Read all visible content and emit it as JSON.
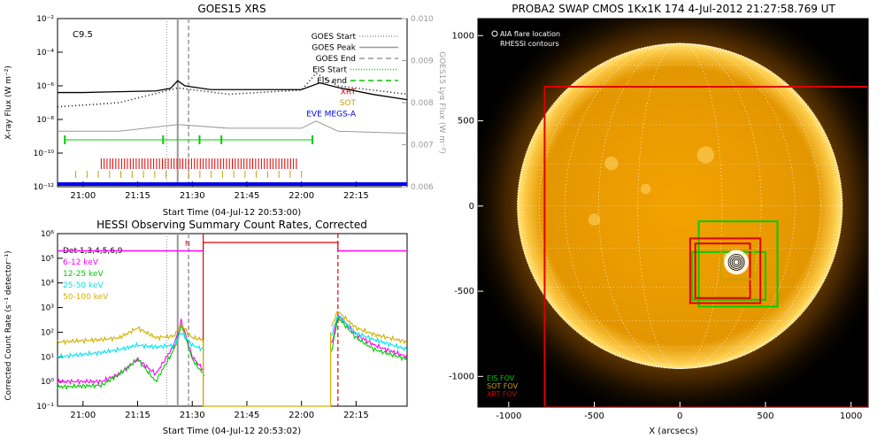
{
  "colors": {
    "goes": "#000000",
    "eis": "#00cc00",
    "xrt": "#e00000",
    "sot": "#c8a000",
    "eve": "#0000ee",
    "det": "#000000",
    "c6_12": "#ff00ff",
    "c12_25": "#00cc00",
    "c25_50": "#00e5ee",
    "c50_100": "#d4b000",
    "sun": "#f0a800",
    "grid": "#ffffff"
  },
  "goes_panel": {
    "title": "GOES15 XRS",
    "ylabel": "X-ray Flux (W m⁻²)",
    "y2label": "GOES15 Lyα Flux (W m⁻²)",
    "xlabel": "Start Time (04-Jul-12 20:53:00)",
    "flare_class": "C9.5",
    "legend": [
      {
        "label": "GOES Start",
        "style": "dotted",
        "color": "#999999"
      },
      {
        "label": "GOES Peak",
        "style": "solid",
        "color": "#999999"
      },
      {
        "label": "GOES End",
        "style": "dashed",
        "color": "#999999"
      },
      {
        "label": "EIS Start",
        "style": "dotted",
        "color": "#00cc00"
      },
      {
        "label": "EIS end",
        "style": "dashed",
        "color": "#00cc00"
      },
      {
        "label": "XRT",
        "style": "text",
        "color": "#e00000"
      },
      {
        "label": "SOT",
        "style": "text",
        "color": "#c8a000"
      },
      {
        "label": "EVE MEGS-A",
        "style": "text",
        "color": "#0000ee"
      }
    ]
  },
  "hessi_panel": {
    "title": "HESSI Observing Summary Count Rates, Corrected",
    "ylabel": "Corrected Count Rate (s⁻¹ detector⁻¹)",
    "xlabel": "Start Time (04-Jul-12 20:53:02)",
    "legend": [
      {
        "label": "Det 1,3,4,5,6,9",
        "color": "#000000"
      },
      {
        "label": "6-12 keV",
        "color": "#ff00ff"
      },
      {
        "label": "12-25 keV",
        "color": "#00cc00"
      },
      {
        "label": "25-50 keV",
        "color": "#00e5ee"
      },
      {
        "label": "50-100 keV",
        "color": "#d4b000"
      }
    ],
    "n_marker": "N"
  },
  "swap_panel": {
    "title": "PROBA2 SWAP CMOS 1Kx1K 174  4-Jul-2012 21:27:58.769 UT",
    "legend_top": [
      "AIA flare location",
      "RHESSI contours"
    ],
    "legend_bottom": [
      {
        "label": "EIS FOV",
        "color": "#00cc00"
      },
      {
        "label": "SOT FOV",
        "color": "#c8a000"
      },
      {
        "label": "XRT FOV",
        "color": "#e00000"
      }
    ],
    "xlabel": "X (arcsecs)"
  },
  "chart_data": [
    {
      "type": "line",
      "title": "GOES15 XRS",
      "xlabel": "Start Time (04-Jul-12 20:53:00)",
      "ylabel": "X-ray Flux (W m⁻²)",
      "y2label": "GOES15 Lyα Flux (W m⁻²)",
      "xlim": [
        "20:53",
        "22:29"
      ],
      "ylim": [
        1e-12,
        0.01
      ],
      "y2lim": [
        0.006,
        0.01
      ],
      "yscale": "log",
      "xticks": [
        "21:00",
        "21:15",
        "21:30",
        "21:45",
        "22:00",
        "22:15"
      ],
      "yticks": [
        "10⁻¹²",
        "10⁻¹⁰",
        "10⁻⁸",
        "10⁻⁶",
        "10⁻⁴",
        "10⁻²"
      ],
      "y2ticks": [
        "0.006",
        "0.007",
        "0.008",
        "0.009",
        "0.010"
      ],
      "events": {
        "goes_start": "21:23",
        "goes_peak": "21:26",
        "goes_end": "21:29",
        "eis_start": "21:22",
        "eis_end": "22:03"
      },
      "series": [
        {
          "name": "",
          "x": [
            "20:53",
            "21:00",
            "21:10",
            "21:20",
            "21:24",
            "21:26",
            "21:28",
            "21:35",
            "21:45",
            "22:00",
            "22:05",
            "22:10",
            "22:20",
            "22:29"
          ],
          "values": [
            4e-07,
            4e-07,
            4.5e-07,
            5e-07,
            7e-07,
            2e-06,
            1e-06,
            6e-07,
            6e-07,
            6e-07,
            1.5e-06,
            8e-07,
            3e-07,
            1.5e-07
          ]
        },
        {
          "name": "",
          "x": [
            "20:53",
            "21:10",
            "21:26",
            "21:40",
            "22:00",
            "22:04",
            "22:10",
            "22:29"
          ],
          "values": [
            0.0079,
            0.008,
            0.00835,
            0.0082,
            0.0083,
            0.0087,
            0.0084,
            0.0082
          ]
        },
        {
          "name": "",
          "x": [
            "20:53",
            "21:10",
            "21:26",
            "21:40",
            "22:00",
            "22:04",
            "22:10",
            "22:29"
          ],
          "values": [
            2e-09,
            2e-09,
            5e-09,
            3e-09,
            3e-09,
            8e-09,
            2e-09,
            1.5e-09
          ]
        }
      ]
    },
    {
      "type": "line",
      "title": "HESSI Observing Summary Count Rates, Corrected",
      "xlabel": "Start Time (04-Jul-12 20:53:02)",
      "ylabel": "Corrected Count Rate (s⁻¹ detector⁻¹)",
      "xlim": [
        "20:53",
        "22:29"
      ],
      "ylim": [
        0.1,
        1000000.0
      ],
      "yscale": "log",
      "xticks": [
        "21:00",
        "21:15",
        "21:30",
        "21:45",
        "22:00",
        "22:15"
      ],
      "yticks": [
        "10⁻¹",
        "10⁰",
        "10¹",
        "10²",
        "10³",
        "10⁴",
        "10⁵",
        "10⁶"
      ],
      "series": [
        {
          "name": "6-12 keV",
          "x": [
            "20:53",
            "21:05",
            "21:10",
            "21:15",
            "21:20",
            "21:25",
            "21:27",
            "21:30",
            "21:33",
            "22:08",
            "22:10",
            "22:15",
            "22:20",
            "22:29"
          ],
          "values": [
            1,
            1,
            2,
            8,
            2,
            30,
            300,
            10,
            3,
            20,
            500,
            80,
            30,
            10
          ]
        },
        {
          "name": "12-25 keV",
          "x": [
            "20:53",
            "21:05",
            "21:10",
            "21:15",
            "21:20",
            "21:25",
            "21:27",
            "21:30",
            "21:33",
            "22:08",
            "22:10",
            "22:15",
            "22:20",
            "22:29"
          ],
          "values": [
            0.6,
            0.7,
            2,
            8,
            1,
            20,
            200,
            8,
            2,
            10,
            400,
            60,
            20,
            8
          ]
        },
        {
          "name": "25-50 keV",
          "x": [
            "20:53",
            "21:05",
            "21:10",
            "21:15",
            "21:20",
            "21:25",
            "21:27",
            "21:30",
            "21:33",
            "22:08",
            "22:10",
            "22:15",
            "22:20",
            "22:29"
          ],
          "values": [
            10,
            15,
            20,
            30,
            25,
            30,
            100,
            30,
            20,
            60,
            500,
            90,
            50,
            20
          ]
        },
        {
          "name": "50-100 keV",
          "x": [
            "20:53",
            "21:05",
            "21:10",
            "21:15",
            "21:20",
            "21:25",
            "21:27",
            "21:30",
            "21:33",
            "22:08",
            "22:10",
            "22:15",
            "22:20",
            "22:29"
          ],
          "values": [
            40,
            50,
            60,
            150,
            60,
            70,
            200,
            60,
            50,
            150,
            700,
            150,
            80,
            40
          ]
        }
      ]
    },
    {
      "type": "heatmap",
      "title": "PROBA2 SWAP CMOS 1Kx1K 174  4-Jul-2012 21:27:58.769 UT",
      "xlabel": "X (arcsecs)",
      "ylabel": "",
      "xlim": [
        -1180,
        1100
      ],
      "ylim": [
        -1180,
        1100
      ],
      "xticks": [
        "-1000",
        "-500",
        "0",
        "500",
        "1000"
      ],
      "yticks": [
        "-1000",
        "-500",
        "0",
        "500",
        "1000"
      ],
      "fov_boxes": [
        {
          "name": "XRT FOV",
          "x": [
            -790,
            1100
          ],
          "y": [
            -1180,
            700
          ]
        },
        {
          "name": "EIS FOV",
          "x": [
            110,
            570
          ],
          "y": [
            -590,
            -90
          ]
        },
        {
          "name": "EIS FOV",
          "x": [
            70,
            500
          ],
          "y": [
            -550,
            -270
          ]
        },
        {
          "name": "XRT FOV",
          "x": [
            60,
            470
          ],
          "y": [
            -570,
            -190
          ]
        },
        {
          "name": "XRT FOV",
          "x": [
            90,
            410
          ],
          "y": [
            -540,
            -220
          ]
        },
        {
          "name": "SOT FOV",
          "x": [
            240,
            430
          ],
          "y": [
            -430,
            -260
          ]
        }
      ],
      "flare_location": {
        "x": 330,
        "y": -330
      }
    }
  ]
}
